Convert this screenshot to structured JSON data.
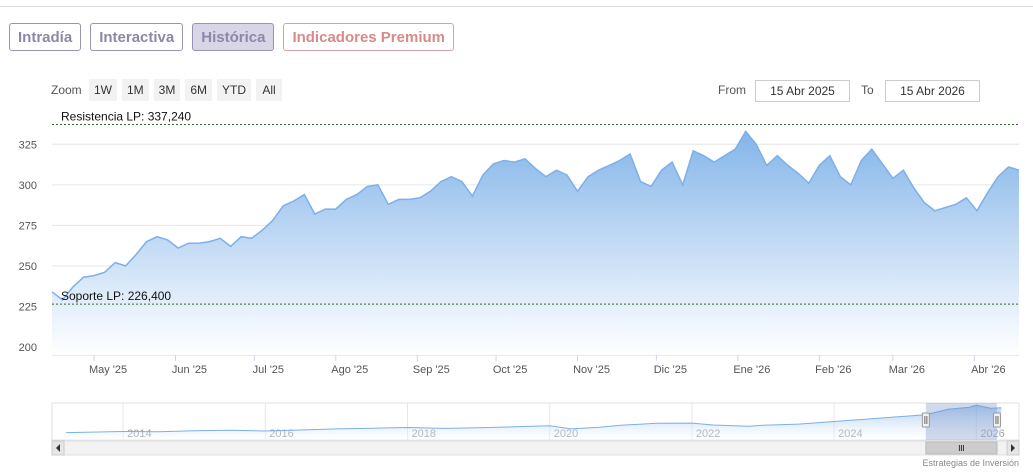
{
  "tabs": [
    {
      "label": "Intradía",
      "active": false
    },
    {
      "label": "Interactiva",
      "active": false
    },
    {
      "label": "Histórica",
      "active": true
    },
    {
      "label": "Indicadores Premium",
      "active": false
    }
  ],
  "zoom": {
    "label": "Zoom",
    "buttons": [
      "1W",
      "1M",
      "3M",
      "6M",
      "YTD",
      "All"
    ]
  },
  "range": {
    "from_label": "From",
    "from_value": "15 Abr 2025",
    "to_label": "To",
    "to_value": "15 Abr 2026"
  },
  "credits": "Estrategias de Inversión",
  "colors": {
    "line": "#7cb0e8",
    "area_top": "#7cb0e8",
    "area_bottom": "#ffffff",
    "level_line": "#336633"
  },
  "chart_data": {
    "type": "area",
    "ylim": [
      195,
      340
    ],
    "yticks": [
      200,
      225,
      250,
      275,
      300,
      325
    ],
    "ytick_labels": [
      "200",
      "225",
      "250",
      "275",
      "300",
      "325"
    ],
    "x_start": "2025-04-15",
    "x_end": "2026-04-18",
    "xticks": [
      {
        "date": "2025-05-01",
        "label": "May '25"
      },
      {
        "date": "2025-06-01",
        "label": "Jun '25"
      },
      {
        "date": "2025-07-01",
        "label": "Jul '25"
      },
      {
        "date": "2025-08-01",
        "label": "Ago '25"
      },
      {
        "date": "2025-09-01",
        "label": "Sep '25"
      },
      {
        "date": "2025-10-01",
        "label": "Oct '25"
      },
      {
        "date": "2025-11-01",
        "label": "Nov '25"
      },
      {
        "date": "2025-12-01",
        "label": "Dic '25"
      },
      {
        "date": "2026-01-01",
        "label": "Ene '26"
      },
      {
        "date": "2026-02-01",
        "label": "Feb '26"
      },
      {
        "date": "2026-03-01",
        "label": "Mar '26"
      },
      {
        "date": "2026-04-01",
        "label": "Abr '26"
      }
    ],
    "levels": [
      {
        "label": "Resistencia LP: 337,240",
        "value": 337.24
      },
      {
        "label": "Soporte LP: 226,400",
        "value": 226.4
      }
    ],
    "series": [
      {
        "points": [
          [
            "2025-04-15",
            234
          ],
          [
            "2025-04-19",
            229
          ],
          [
            "2025-04-23",
            237
          ],
          [
            "2025-04-27",
            243
          ],
          [
            "2025-05-01",
            244
          ],
          [
            "2025-05-05",
            246
          ],
          [
            "2025-05-09",
            252
          ],
          [
            "2025-05-13",
            250
          ],
          [
            "2025-05-17",
            257
          ],
          [
            "2025-05-21",
            265
          ],
          [
            "2025-05-25",
            268
          ],
          [
            "2025-05-29",
            266
          ],
          [
            "2025-06-02",
            261
          ],
          [
            "2025-06-06",
            264
          ],
          [
            "2025-06-10",
            264
          ],
          [
            "2025-06-14",
            265
          ],
          [
            "2025-06-18",
            267
          ],
          [
            "2025-06-22",
            262
          ],
          [
            "2025-06-26",
            268
          ],
          [
            "2025-06-30",
            267
          ],
          [
            "2025-07-04",
            272
          ],
          [
            "2025-07-08",
            278
          ],
          [
            "2025-07-12",
            287
          ],
          [
            "2025-07-16",
            290
          ],
          [
            "2025-07-20",
            294
          ],
          [
            "2025-07-24",
            282
          ],
          [
            "2025-07-28",
            285
          ],
          [
            "2025-08-01",
            285
          ],
          [
            "2025-08-05",
            291
          ],
          [
            "2025-08-09",
            294
          ],
          [
            "2025-08-13",
            299
          ],
          [
            "2025-08-17",
            300
          ],
          [
            "2025-08-21",
            288
          ],
          [
            "2025-08-25",
            291
          ],
          [
            "2025-08-29",
            291
          ],
          [
            "2025-09-02",
            292
          ],
          [
            "2025-09-06",
            296
          ],
          [
            "2025-09-10",
            302
          ],
          [
            "2025-09-14",
            305
          ],
          [
            "2025-09-18",
            302
          ],
          [
            "2025-09-22",
            293
          ],
          [
            "2025-09-26",
            306
          ],
          [
            "2025-09-30",
            313
          ],
          [
            "2025-10-04",
            315
          ],
          [
            "2025-10-08",
            314
          ],
          [
            "2025-10-12",
            316
          ],
          [
            "2025-10-16",
            310
          ],
          [
            "2025-10-20",
            305
          ],
          [
            "2025-10-24",
            309
          ],
          [
            "2025-10-28",
            306
          ],
          [
            "2025-11-01",
            296
          ],
          [
            "2025-11-05",
            305
          ],
          [
            "2025-11-09",
            309
          ],
          [
            "2025-11-13",
            312
          ],
          [
            "2025-11-17",
            315
          ],
          [
            "2025-11-21",
            319
          ],
          [
            "2025-11-25",
            302
          ],
          [
            "2025-11-29",
            299
          ],
          [
            "2025-12-03",
            309
          ],
          [
            "2025-12-07",
            314
          ],
          [
            "2025-12-11",
            300
          ],
          [
            "2025-12-15",
            321
          ],
          [
            "2025-12-19",
            318
          ],
          [
            "2025-12-23",
            314
          ],
          [
            "2025-12-27",
            318
          ],
          [
            "2025-12-31",
            322
          ],
          [
            "2026-01-04",
            333
          ],
          [
            "2026-01-08",
            325
          ],
          [
            "2026-01-12",
            312
          ],
          [
            "2026-01-16",
            318
          ],
          [
            "2026-01-20",
            312
          ],
          [
            "2026-01-24",
            307
          ],
          [
            "2026-01-28",
            301
          ],
          [
            "2026-02-01",
            312
          ],
          [
            "2026-02-05",
            318
          ],
          [
            "2026-02-09",
            305
          ],
          [
            "2026-02-13",
            300
          ],
          [
            "2026-02-17",
            315
          ],
          [
            "2026-02-21",
            322
          ],
          [
            "2026-02-25",
            313
          ],
          [
            "2026-03-01",
            304
          ],
          [
            "2026-03-05",
            309
          ],
          [
            "2026-03-09",
            298
          ],
          [
            "2026-03-13",
            289
          ],
          [
            "2026-03-17",
            284
          ],
          [
            "2026-03-21",
            286
          ],
          [
            "2026-03-25",
            288
          ],
          [
            "2026-03-29",
            292
          ],
          [
            "2026-04-02",
            284
          ],
          [
            "2026-04-06",
            295
          ],
          [
            "2026-04-10",
            305
          ],
          [
            "2026-04-14",
            311
          ],
          [
            "2026-04-18",
            309
          ]
        ]
      }
    ],
    "navigator": {
      "x_range": [
        2013.0,
        2026.6
      ],
      "ylim": [
        0,
        350
      ],
      "tick_labels": [
        "2014",
        "2016",
        "2018",
        "2020",
        "2022",
        "2024",
        "2026"
      ],
      "tick_years": [
        2014,
        2016,
        2018,
        2020,
        2022,
        2024,
        2026
      ],
      "selected_range": [
        2025.29,
        2026.29
      ],
      "points": [
        [
          2013.2,
          70
        ],
        [
          2014.0,
          80
        ],
        [
          2014.5,
          78
        ],
        [
          2015.0,
          88
        ],
        [
          2015.5,
          92
        ],
        [
          2016.0,
          85
        ],
        [
          2016.5,
          95
        ],
        [
          2017.0,
          105
        ],
        [
          2017.5,
          112
        ],
        [
          2018.0,
          118
        ],
        [
          2018.5,
          110
        ],
        [
          2019.0,
          115
        ],
        [
          2019.5,
          125
        ],
        [
          2020.0,
          135
        ],
        [
          2020.3,
          105
        ],
        [
          2020.7,
          120
        ],
        [
          2021.0,
          140
        ],
        [
          2021.5,
          158
        ],
        [
          2022.0,
          160
        ],
        [
          2022.3,
          142
        ],
        [
          2022.8,
          130
        ],
        [
          2023.0,
          140
        ],
        [
          2023.5,
          150
        ],
        [
          2024.0,
          175
        ],
        [
          2024.5,
          200
        ],
        [
          2025.0,
          225
        ],
        [
          2025.3,
          240
        ],
        [
          2025.6,
          290
        ],
        [
          2025.9,
          310
        ],
        [
          2026.0,
          330
        ],
        [
          2026.2,
          300
        ],
        [
          2026.35,
          305
        ]
      ]
    }
  }
}
